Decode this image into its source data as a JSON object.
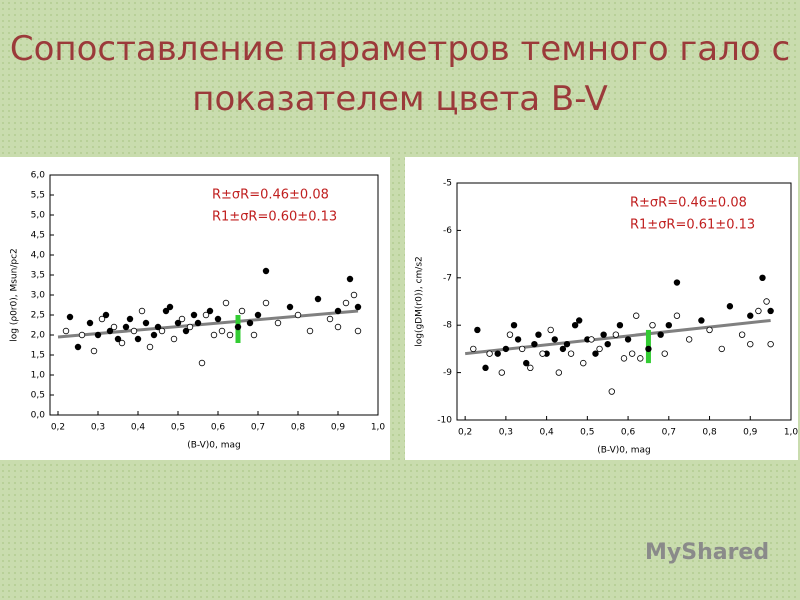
{
  "title": "Сопоставление параметров темного гало с показателем цвета B-V",
  "watermark": "MyShared",
  "chart_data": [
    {
      "type": "scatter",
      "xlabel": "(B-V)0, mag",
      "ylabel": "log (ρ0r0), Msun/pc2",
      "annotations": [
        "R±σR=0.46±0.08",
        "R1±σR=0.60±0.13"
      ],
      "xlim": [
        0.18,
        1.0
      ],
      "xticks": [
        {
          "value": 0.2,
          "label": "0,2"
        },
        {
          "value": 0.3,
          "label": "0,3"
        },
        {
          "value": 0.4,
          "label": "0,4"
        },
        {
          "value": 0.5,
          "label": "0,5"
        },
        {
          "value": 0.6,
          "label": "0,6"
        },
        {
          "value": 0.7,
          "label": "0,7"
        },
        {
          "value": 0.8,
          "label": "0,8"
        },
        {
          "value": 0.9,
          "label": "0,9"
        },
        {
          "value": 1.0,
          "label": "1,0"
        }
      ],
      "ylim": [
        0,
        6
      ],
      "yticks": [
        {
          "value": 0,
          "label": "0,0"
        },
        {
          "value": 0.5,
          "label": "0,5"
        },
        {
          "value": 1,
          "label": "1,0"
        },
        {
          "value": 1.5,
          "label": "1,5"
        },
        {
          "value": 2,
          "label": "2,0"
        },
        {
          "value": 2.5,
          "label": "2,5"
        },
        {
          "value": 3,
          "label": "3,0"
        },
        {
          "value": 3.5,
          "label": "3,5"
        },
        {
          "value": 4,
          "label": "4,0"
        },
        {
          "value": 4.5,
          "label": "4,5"
        },
        {
          "value": 5,
          "label": "5,0"
        },
        {
          "value": 5.5,
          "label": "5,5"
        },
        {
          "value": 6,
          "label": "6,0"
        }
      ],
      "series": [
        {
          "type": "line",
          "color": "#808080",
          "x": [
            0.2,
            0.95
          ],
          "values": [
            1.95,
            2.6
          ]
        },
        {
          "type": "segment",
          "color": "#33cc33",
          "x": [
            0.65,
            0.65
          ],
          "values": [
            1.8,
            2.5
          ]
        },
        {
          "type": "scatter",
          "marker": "filled",
          "color": "#000000",
          "x": [
            0.23,
            0.25,
            0.28,
            0.3,
            0.32,
            0.33,
            0.35,
            0.37,
            0.38,
            0.4,
            0.42,
            0.44,
            0.45,
            0.47,
            0.48,
            0.5,
            0.52,
            0.54,
            0.55,
            0.58,
            0.6,
            0.65,
            0.68,
            0.7,
            0.72,
            0.78,
            0.85,
            0.9,
            0.93,
            0.95
          ],
          "values": [
            2.45,
            1.7,
            2.3,
            2.0,
            2.5,
            2.1,
            1.9,
            2.2,
            2.4,
            1.9,
            2.3,
            2.0,
            2.2,
            2.6,
            2.7,
            2.3,
            2.1,
            2.5,
            2.3,
            2.6,
            2.4,
            2.2,
            2.3,
            2.5,
            3.6,
            2.7,
            2.9,
            2.6,
            3.4,
            2.7
          ]
        },
        {
          "type": "scatter",
          "marker": "open",
          "color": "#000000",
          "x": [
            0.22,
            0.26,
            0.29,
            0.31,
            0.34,
            0.36,
            0.39,
            0.41,
            0.43,
            0.46,
            0.49,
            0.51,
            0.53,
            0.56,
            0.57,
            0.59,
            0.61,
            0.62,
            0.63,
            0.66,
            0.69,
            0.72,
            0.75,
            0.8,
            0.83,
            0.88,
            0.9,
            0.92,
            0.94,
            0.95
          ],
          "values": [
            2.1,
            2.0,
            1.6,
            2.4,
            2.2,
            1.8,
            2.1,
            2.6,
            1.7,
            2.1,
            1.9,
            2.4,
            2.2,
            1.3,
            2.5,
            2.0,
            2.1,
            2.8,
            2.0,
            2.6,
            2.0,
            2.8,
            2.3,
            2.5,
            2.1,
            2.4,
            2.2,
            2.8,
            3.0,
            2.1
          ]
        }
      ]
    },
    {
      "type": "scatter",
      "xlabel": "(B-V)0, mag",
      "ylabel": "log(gDM(r0)), cm/s2",
      "annotations": [
        "R±σR=0.46±0.08",
        "R1±σR=0.61±0.13"
      ],
      "xlim": [
        0.18,
        1.0
      ],
      "xticks": [
        {
          "value": 0.2,
          "label": "0,2"
        },
        {
          "value": 0.3,
          "label": "0,3"
        },
        {
          "value": 0.4,
          "label": "0,4"
        },
        {
          "value": 0.5,
          "label": "0,5"
        },
        {
          "value": 0.6,
          "label": "0,6"
        },
        {
          "value": 0.7,
          "label": "0,7"
        },
        {
          "value": 0.8,
          "label": "0,8"
        },
        {
          "value": 0.9,
          "label": "0,9"
        },
        {
          "value": 1.0,
          "label": "1,0"
        }
      ],
      "ylim": [
        -10,
        -5
      ],
      "yticks": [
        -10,
        -9,
        -8,
        -7,
        -6,
        -5
      ],
      "series": [
        {
          "type": "line",
          "color": "#808080",
          "x": [
            0.2,
            0.95
          ],
          "values": [
            -8.6,
            -7.9
          ]
        },
        {
          "type": "segment",
          "color": "#33cc33",
          "x": [
            0.65,
            0.65
          ],
          "values": [
            -8.8,
            -8.1
          ]
        },
        {
          "type": "scatter",
          "marker": "filled",
          "color": "#000000",
          "x": [
            0.23,
            0.25,
            0.28,
            0.3,
            0.32,
            0.33,
            0.35,
            0.37,
            0.38,
            0.4,
            0.42,
            0.44,
            0.45,
            0.47,
            0.48,
            0.5,
            0.52,
            0.54,
            0.55,
            0.58,
            0.6,
            0.65,
            0.68,
            0.7,
            0.72,
            0.78,
            0.85,
            0.9,
            0.93,
            0.95
          ],
          "values": [
            -8.1,
            -8.9,
            -8.6,
            -8.5,
            -8.0,
            -8.3,
            -8.8,
            -8.4,
            -8.2,
            -8.6,
            -8.3,
            -8.5,
            -8.4,
            -8.0,
            -7.9,
            -8.3,
            -8.6,
            -8.2,
            -8.4,
            -8.0,
            -8.3,
            -8.5,
            -8.2,
            -8.0,
            -7.1,
            -7.9,
            -7.6,
            -7.8,
            -7.0,
            -7.7
          ]
        },
        {
          "type": "scatter",
          "marker": "open",
          "color": "#000000",
          "x": [
            0.22,
            0.26,
            0.29,
            0.31,
            0.34,
            0.36,
            0.39,
            0.41,
            0.43,
            0.46,
            0.49,
            0.51,
            0.53,
            0.56,
            0.57,
            0.59,
            0.61,
            0.62,
            0.63,
            0.66,
            0.69,
            0.72,
            0.75,
            0.8,
            0.83,
            0.88,
            0.9,
            0.92,
            0.94,
            0.95
          ],
          "values": [
            -8.5,
            -8.6,
            -9.0,
            -8.2,
            -8.5,
            -8.9,
            -8.6,
            -8.1,
            -9.0,
            -8.6,
            -8.8,
            -8.3,
            -8.5,
            -9.4,
            -8.2,
            -8.7,
            -8.6,
            -7.8,
            -8.7,
            -8.0,
            -8.6,
            -7.8,
            -8.3,
            -8.1,
            -8.5,
            -8.2,
            -8.4,
            -7.7,
            -7.5,
            -8.4
          ]
        }
      ]
    }
  ]
}
